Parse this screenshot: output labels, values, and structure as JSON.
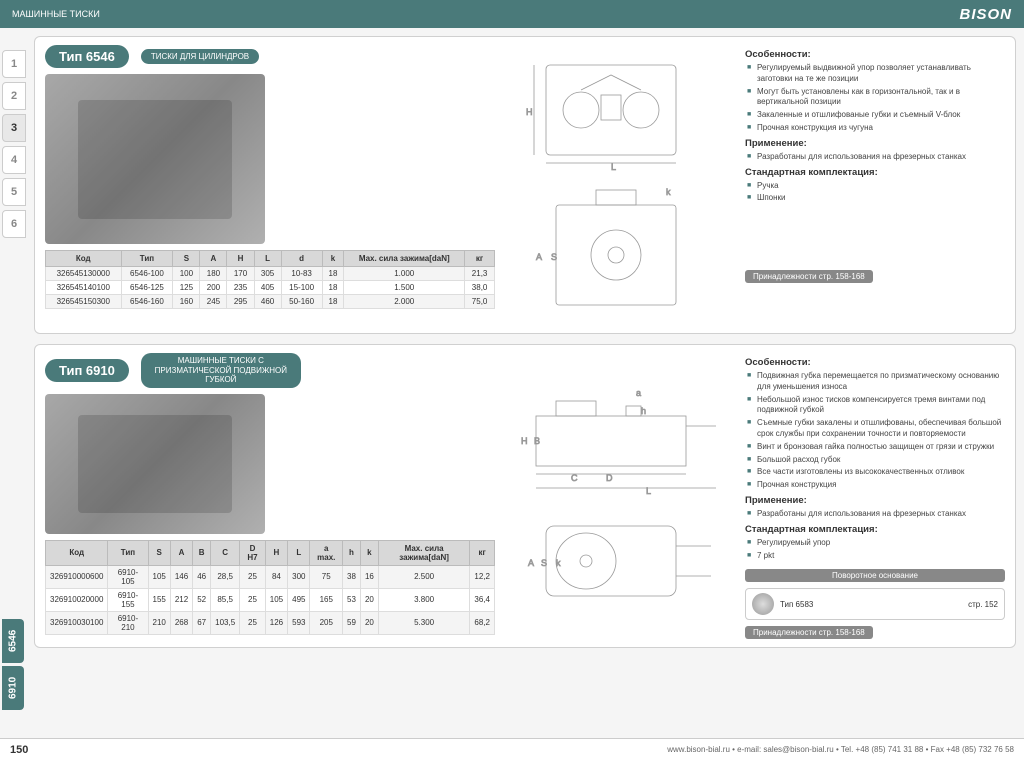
{
  "header": {
    "title": "МАШИННЫЕ ТИСКИ",
    "logo": "BISON"
  },
  "sideTabs": [
    "1",
    "2",
    "3",
    "4",
    "5",
    "6"
  ],
  "bottomTabs": [
    "6546",
    "6910"
  ],
  "p1": {
    "badge": "Тип 6546",
    "sub": "ТИСКИ ДЛЯ ЦИЛИНДРОВ",
    "cols": [
      "Код",
      "Тип",
      "S",
      "A",
      "H",
      "L",
      "d",
      "k",
      "Мах. сила зажима[daN]",
      "кг"
    ],
    "rows": [
      [
        "326545130000",
        "6546-100",
        "100",
        "180",
        "170",
        "305",
        "10-83",
        "18",
        "1.000",
        "21,3"
      ],
      [
        "326545140100",
        "6546-125",
        "125",
        "200",
        "235",
        "405",
        "15-100",
        "18",
        "1.500",
        "38,0"
      ],
      [
        "326545150300",
        "6546-160",
        "160",
        "245",
        "295",
        "460",
        "50-160",
        "18",
        "2.000",
        "75,0"
      ]
    ],
    "feat": {
      "h1": "Особенности:",
      "l1": [
        "Регулируемый выдвижной упор позволяет устанавливать заготовки на те же позиции",
        "Могут быть установлены как в горизонтальной, так и в вертикальной позиции",
        "Закаленные и отшлифованые губки и съемный V-блок",
        "Прочная конструкция из чугуна"
      ],
      "h2": "Применение:",
      "l2": [
        "Разработаны для использования на фрезерных станках"
      ],
      "h3": "Стандартная комплектация:",
      "l3": [
        "Ручка",
        "Шпонки"
      ]
    },
    "acc": "Принадлежности стр. 158-168"
  },
  "p2": {
    "badge": "Тип 6910",
    "sub": "МАШИННЫЕ ТИСКИ С ПРИЗМАТИЧЕСКОЙ ПОДВИЖНОЙ ГУБКОЙ",
    "cols": [
      "Код",
      "Тип",
      "S",
      "A",
      "B",
      "C",
      "D H7",
      "H",
      "L",
      "a max.",
      "h",
      "k",
      "Мах. сила зажима[daN]",
      "кг"
    ],
    "rows": [
      [
        "326910000600",
        "6910-105",
        "105",
        "146",
        "46",
        "28,5",
        "25",
        "84",
        "300",
        "75",
        "38",
        "16",
        "2.500",
        "12,2"
      ],
      [
        "326910020000",
        "6910-155",
        "155",
        "212",
        "52",
        "85,5",
        "25",
        "105",
        "495",
        "165",
        "53",
        "20",
        "3.800",
        "36,4"
      ],
      [
        "326910030100",
        "6910-210",
        "210",
        "268",
        "67",
        "103,5",
        "25",
        "126",
        "593",
        "205",
        "59",
        "20",
        "5.300",
        "68,2"
      ]
    ],
    "feat": {
      "h1": "Особенности:",
      "l1": [
        "Подвижная губка перемещается по призматическому основанию для уменьшения износа",
        "Небольшой износ тисков компенсируется тремя винтами под подвижной губкой",
        "Съемные губки закалены и отшлифованы, обеспечивая большой срок службы при сохранении точности и повторяемости",
        "Винт и бронзовая гайка полностью защищен от грязи и стружки",
        "Большой расход губок",
        "Все части изготовлены из высококачественных отливок",
        "Прочная конструкция"
      ],
      "h2": "Применение:",
      "l2": [
        "Разработаны для использования на фрезерных станках"
      ],
      "h3": "Стандартная комплектация:",
      "l3": [
        "Регулируемый упор",
        "7 pkt"
      ]
    },
    "rotHead": "Поворотное основание",
    "rotType": "Тип 6583",
    "rotPage": "стр. 152",
    "acc": "Принадлежности стр. 158-168"
  },
  "footer": {
    "page": "150",
    "contact": "www.bison-bial.ru • e-mail: sales@bison-bial.ru • Tel. +48 (85) 741 31 88 • Fax +48 (85) 732 76 58"
  }
}
